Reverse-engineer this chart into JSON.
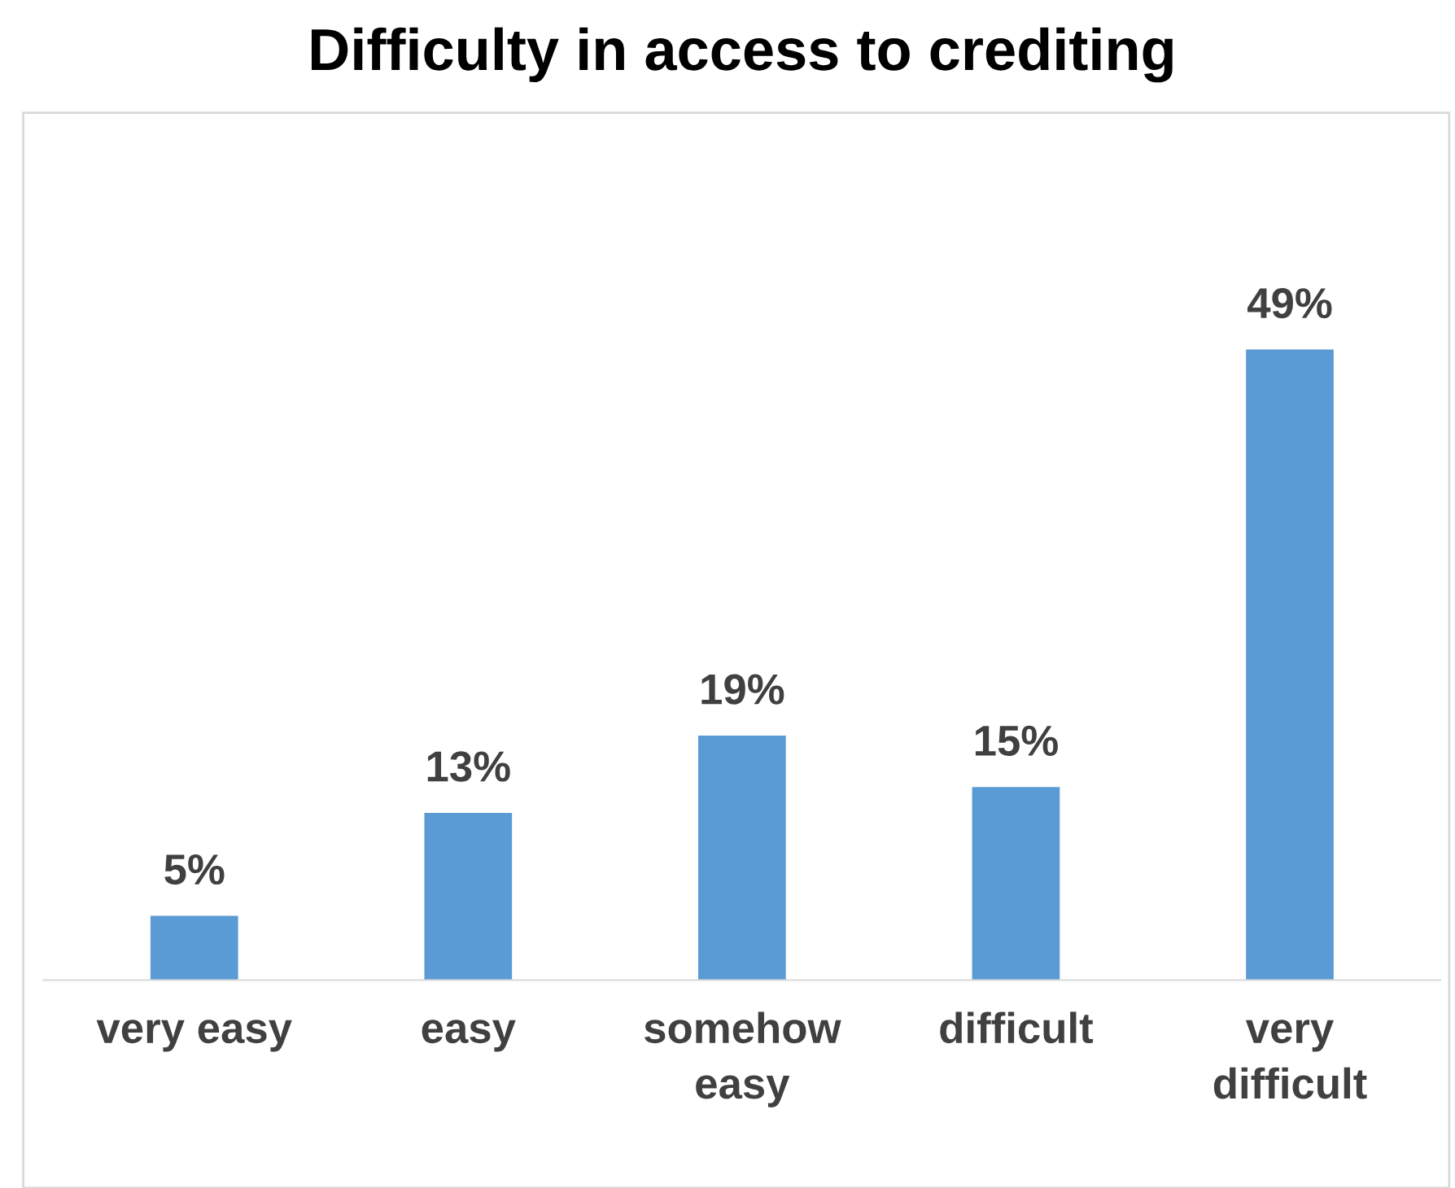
{
  "chart_data": {
    "type": "bar",
    "title": "Difficulty in access to crediting",
    "categories": [
      "very easy",
      "easy",
      "somehow\neasy",
      "difficult",
      "very\ndifficult"
    ],
    "values": [
      5,
      13,
      19,
      15,
      49
    ],
    "color": "#5b9bd5",
    "value_labels": [
      "5%",
      "13%",
      "19%",
      "15%",
      "49%"
    ],
    "grid": false,
    "legend": false,
    "tick_labels": "x"
  }
}
